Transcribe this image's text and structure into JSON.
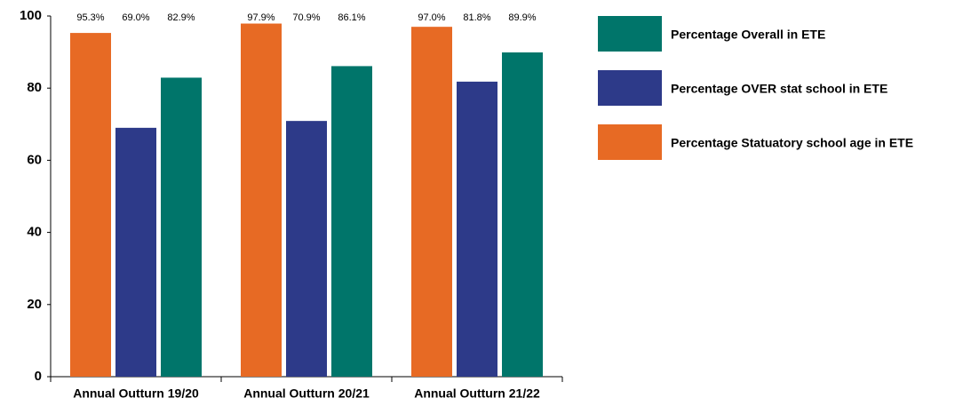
{
  "chart_data": {
    "type": "bar",
    "categories": [
      "Annual Outturn 19/20",
      "Annual Outturn 20/21",
      "Annual Outturn 21/22"
    ],
    "series": [
      {
        "name": "Percentage Statuatory school age in ETE",
        "color": "#e76a24",
        "values": [
          95.3,
          97.9,
          97.0
        ],
        "value_labels": [
          "95.3%",
          "97.9%",
          "97.0%"
        ]
      },
      {
        "name": "Percentage OVER stat school in ETE",
        "color": "#2d3a89",
        "values": [
          69.0,
          70.9,
          81.8
        ],
        "value_labels": [
          "69.0%",
          "70.9%",
          "81.8%"
        ]
      },
      {
        "name": "Percentage Overall in ETE",
        "color": "#00756a",
        "values": [
          82.9,
          86.1,
          89.9
        ],
        "value_labels": [
          "82.9%",
          "86.1%",
          "89.9%"
        ]
      }
    ],
    "ylim": [
      0,
      100
    ],
    "yticks": [
      0,
      20,
      40,
      60,
      80,
      100
    ],
    "grid": false,
    "legend": "right"
  }
}
